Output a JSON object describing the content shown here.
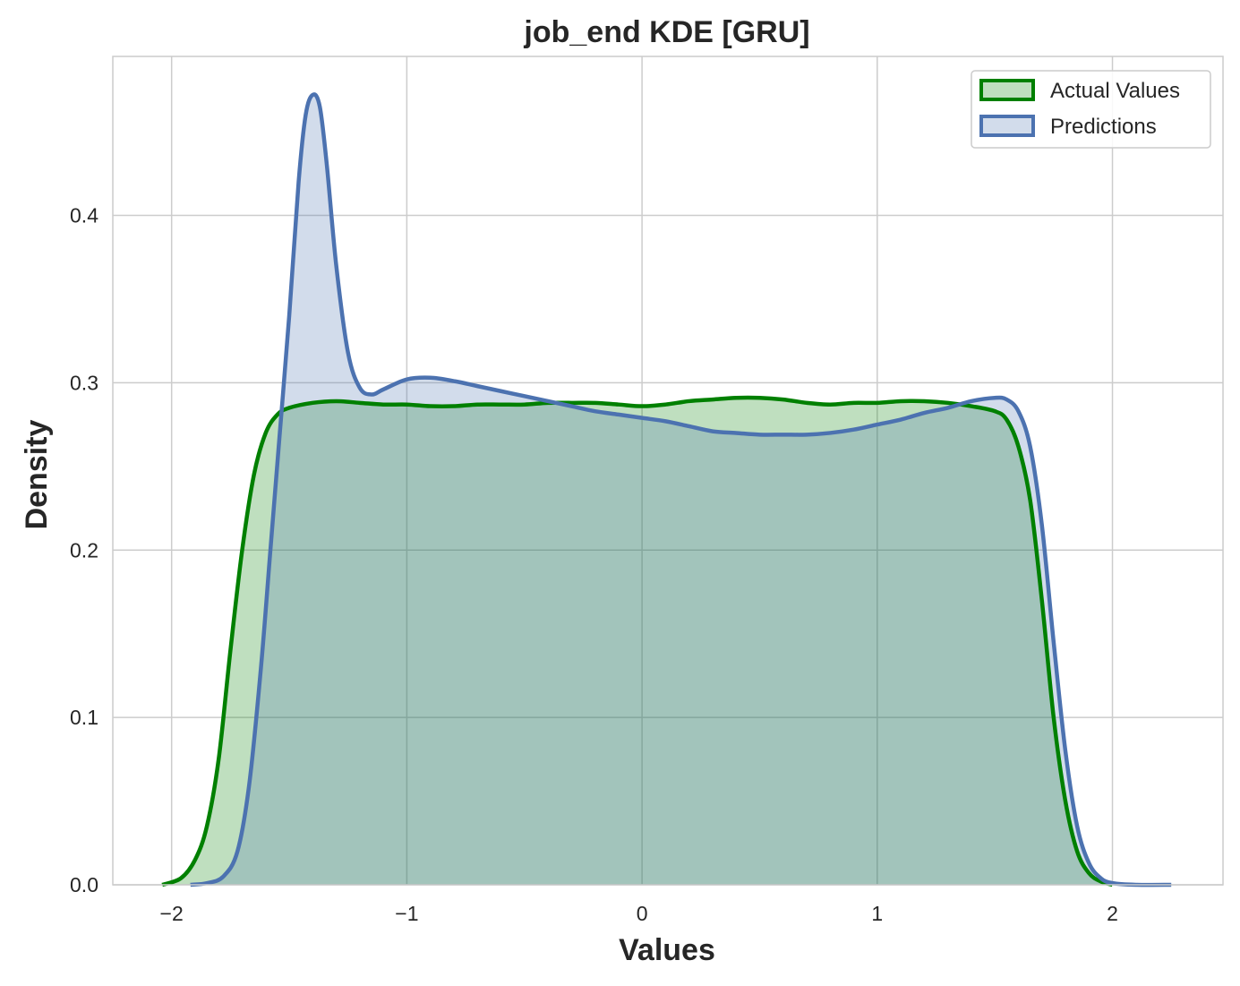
{
  "chart_data": {
    "type": "area",
    "title": "job_end KDE [GRU]",
    "xlabel": "Values",
    "ylabel": "Density",
    "xlim": [
      -2.25,
      2.47
    ],
    "ylim": [
      0,
      0.495
    ],
    "xticks": [
      -2,
      -1,
      0,
      1,
      2
    ],
    "xtick_labels": [
      "−2",
      "−1",
      "0",
      "1",
      "2"
    ],
    "yticks": [
      0.0,
      0.1,
      0.2,
      0.3,
      0.4
    ],
    "ytick_labels": [
      "0.0",
      "0.1",
      "0.2",
      "0.3",
      "0.4"
    ],
    "grid": true,
    "legend_position": "top-right",
    "series": [
      {
        "name": "Actual Values",
        "color": "#008000",
        "fill": "#008000",
        "points": [
          [
            -2.04,
            0.0
          ],
          [
            -1.96,
            0.004
          ],
          [
            -1.9,
            0.015
          ],
          [
            -1.85,
            0.035
          ],
          [
            -1.8,
            0.075
          ],
          [
            -1.75,
            0.14
          ],
          [
            -1.7,
            0.2
          ],
          [
            -1.65,
            0.245
          ],
          [
            -1.6,
            0.27
          ],
          [
            -1.55,
            0.281
          ],
          [
            -1.5,
            0.285
          ],
          [
            -1.4,
            0.288
          ],
          [
            -1.3,
            0.289
          ],
          [
            -1.2,
            0.288
          ],
          [
            -1.1,
            0.287
          ],
          [
            -1.0,
            0.287
          ],
          [
            -0.9,
            0.286
          ],
          [
            -0.8,
            0.286
          ],
          [
            -0.7,
            0.287
          ],
          [
            -0.6,
            0.287
          ],
          [
            -0.5,
            0.287
          ],
          [
            -0.4,
            0.288
          ],
          [
            -0.3,
            0.288
          ],
          [
            -0.2,
            0.288
          ],
          [
            -0.1,
            0.287
          ],
          [
            0.0,
            0.286
          ],
          [
            0.1,
            0.287
          ],
          [
            0.2,
            0.289
          ],
          [
            0.3,
            0.29
          ],
          [
            0.4,
            0.291
          ],
          [
            0.5,
            0.291
          ],
          [
            0.6,
            0.29
          ],
          [
            0.7,
            0.288
          ],
          [
            0.8,
            0.287
          ],
          [
            0.9,
            0.288
          ],
          [
            1.0,
            0.288
          ],
          [
            1.1,
            0.289
          ],
          [
            1.2,
            0.289
          ],
          [
            1.3,
            0.288
          ],
          [
            1.4,
            0.286
          ],
          [
            1.5,
            0.283
          ],
          [
            1.55,
            0.278
          ],
          [
            1.6,
            0.262
          ],
          [
            1.65,
            0.23
          ],
          [
            1.7,
            0.17
          ],
          [
            1.75,
            0.1
          ],
          [
            1.8,
            0.05
          ],
          [
            1.85,
            0.02
          ],
          [
            1.9,
            0.007
          ],
          [
            1.95,
            0.002
          ],
          [
            2.0,
            0.0
          ]
        ]
      },
      {
        "name": "Predictions",
        "color": "#4c72b0",
        "fill": "#4c72b0",
        "points": [
          [
            -1.92,
            0.0
          ],
          [
            -1.85,
            0.001
          ],
          [
            -1.78,
            0.005
          ],
          [
            -1.72,
            0.02
          ],
          [
            -1.67,
            0.06
          ],
          [
            -1.62,
            0.13
          ],
          [
            -1.58,
            0.2
          ],
          [
            -1.54,
            0.27
          ],
          [
            -1.5,
            0.34
          ],
          [
            -1.46,
            0.42
          ],
          [
            -1.43,
            0.46
          ],
          [
            -1.4,
            0.472
          ],
          [
            -1.37,
            0.465
          ],
          [
            -1.34,
            0.43
          ],
          [
            -1.3,
            0.37
          ],
          [
            -1.25,
            0.318
          ],
          [
            -1.2,
            0.297
          ],
          [
            -1.15,
            0.293
          ],
          [
            -1.1,
            0.296
          ],
          [
            -1.0,
            0.302
          ],
          [
            -0.9,
            0.303
          ],
          [
            -0.8,
            0.301
          ],
          [
            -0.7,
            0.298
          ],
          [
            -0.6,
            0.295
          ],
          [
            -0.5,
            0.292
          ],
          [
            -0.4,
            0.289
          ],
          [
            -0.3,
            0.286
          ],
          [
            -0.2,
            0.283
          ],
          [
            -0.1,
            0.281
          ],
          [
            0.0,
            0.279
          ],
          [
            0.1,
            0.277
          ],
          [
            0.2,
            0.274
          ],
          [
            0.3,
            0.271
          ],
          [
            0.4,
            0.27
          ],
          [
            0.5,
            0.269
          ],
          [
            0.6,
            0.269
          ],
          [
            0.7,
            0.269
          ],
          [
            0.8,
            0.27
          ],
          [
            0.9,
            0.272
          ],
          [
            1.0,
            0.275
          ],
          [
            1.1,
            0.278
          ],
          [
            1.2,
            0.282
          ],
          [
            1.3,
            0.285
          ],
          [
            1.4,
            0.289
          ],
          [
            1.5,
            0.291
          ],
          [
            1.55,
            0.29
          ],
          [
            1.6,
            0.283
          ],
          [
            1.65,
            0.262
          ],
          [
            1.7,
            0.215
          ],
          [
            1.75,
            0.145
          ],
          [
            1.8,
            0.08
          ],
          [
            1.85,
            0.035
          ],
          [
            1.9,
            0.013
          ],
          [
            1.95,
            0.004
          ],
          [
            2.0,
            0.001
          ],
          [
            2.1,
            0.0
          ],
          [
            2.25,
            0.0
          ]
        ]
      }
    ]
  }
}
